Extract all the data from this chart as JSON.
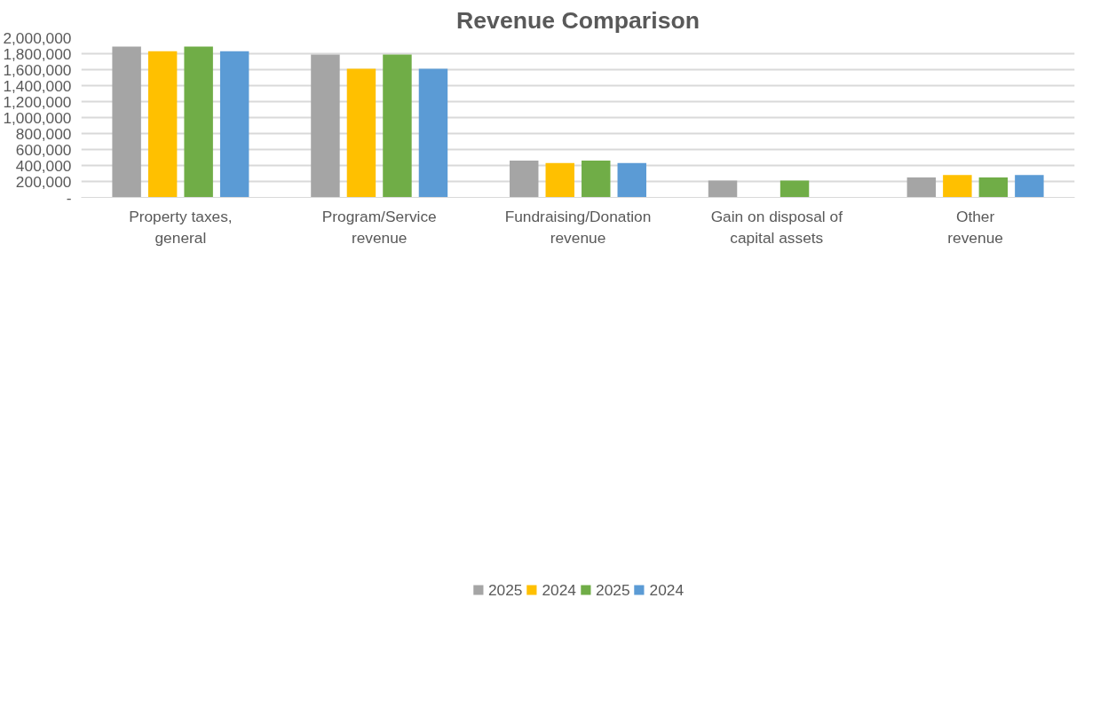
{
  "chart_data": {
    "type": "bar",
    "title": "Revenue Comparison",
    "categories": [
      "Property taxes, general",
      "Program/Service revenue",
      "Fundraising/Donation revenue",
      "Gain on disposal of capital assets",
      "Other revenue"
    ],
    "series": [
      {
        "name": "2025",
        "color": "#a5a5a5",
        "values": [
          1890000,
          1790000,
          460000,
          210000,
          250000
        ]
      },
      {
        "name": "2024",
        "color": "#ffc000",
        "values": [
          1830000,
          1610000,
          430000,
          0,
          280000
        ]
      },
      {
        "name": "2025",
        "color": "#70ad47",
        "values": [
          1890000,
          1790000,
          460000,
          210000,
          250000
        ]
      },
      {
        "name": "2024",
        "color": "#5b9bd5",
        "values": [
          1830000,
          1610000,
          430000,
          0,
          280000
        ]
      }
    ],
    "ylim": [
      0,
      2000000
    ],
    "yticks": [
      {
        "value": 0,
        "label": "-"
      },
      {
        "value": 200000,
        "label": "200,000"
      },
      {
        "value": 400000,
        "label": "400,000"
      },
      {
        "value": 600000,
        "label": "600,000"
      },
      {
        "value": 800000,
        "label": "800,000"
      },
      {
        "value": 1000000,
        "label": "1,000,000"
      },
      {
        "value": 1200000,
        "label": "1,200,000"
      },
      {
        "value": 1400000,
        "label": "1,400,000"
      },
      {
        "value": 1600000,
        "label": "1,600,000"
      },
      {
        "value": 1800000,
        "label": "1,800,000"
      },
      {
        "value": 2000000,
        "label": "2,000,000"
      }
    ],
    "grid": "y",
    "legend": "bottom"
  }
}
